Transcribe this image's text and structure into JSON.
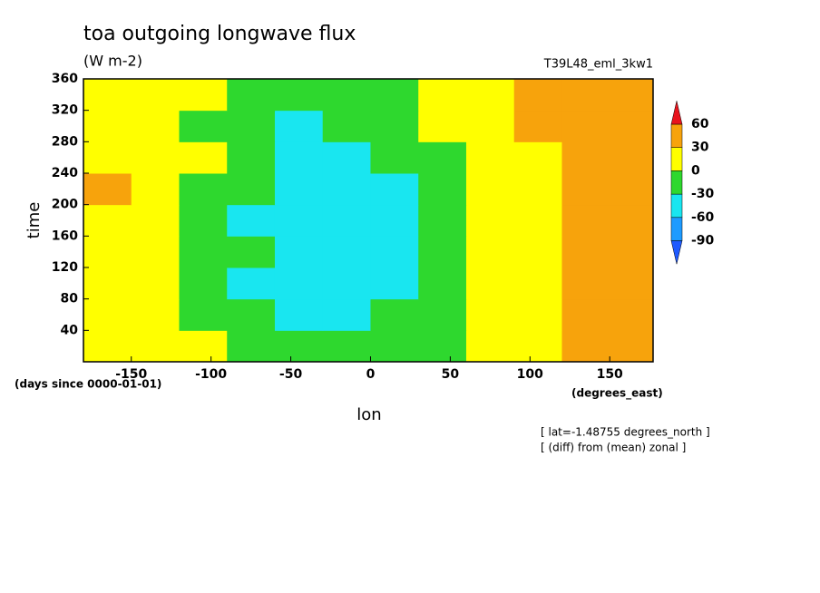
{
  "chart_data": {
    "type": "heatmap",
    "title": "toa outgoing longwave flux",
    "subtitle": "(W m-2)",
    "dataset": "T39L48_eml_3kw1",
    "x_label": "lon",
    "y_label": "time",
    "x_units": "(degrees_east)",
    "y_units": "(days since 0000-01-01)",
    "notes": [
      "[ lat=-1.48755 degrees_north ]",
      "[ (diff) from (mean) zonal ]"
    ],
    "xlim": [
      -180,
      177.1875
    ],
    "ylim": [
      0,
      360
    ],
    "xticks": [
      -150,
      -100,
      -50,
      0,
      50,
      100,
      150
    ],
    "yticks": [
      40,
      80,
      120,
      160,
      200,
      240,
      280,
      320,
      360
    ],
    "x": [
      -165,
      -135,
      -105,
      -75,
      -45,
      -15,
      15,
      45,
      75,
      105,
      135,
      165
    ],
    "y": [
      20,
      60,
      100,
      140,
      180,
      220,
      260,
      300,
      340
    ],
    "z": [
      [
        15,
        10,
        0,
        -20,
        -30,
        -25,
        -20,
        -10,
        10,
        20,
        35,
        35
      ],
      [
        20,
        15,
        -5,
        -25,
        -40,
        -35,
        -30,
        -5,
        15,
        25,
        35,
        30
      ],
      [
        25,
        15,
        -10,
        -35,
        -45,
        -40,
        -35,
        -10,
        10,
        25,
        30,
        35
      ],
      [
        25,
        20,
        -10,
        -30,
        -50,
        -45,
        -40,
        -5,
        15,
        25,
        35,
        30
      ],
      [
        20,
        15,
        -15,
        -35,
        -55,
        -45,
        -40,
        -10,
        10,
        20,
        35,
        35
      ],
      [
        30,
        20,
        -5,
        -30,
        -45,
        -50,
        -35,
        -5,
        15,
        25,
        35,
        30
      ],
      [
        20,
        15,
        0,
        -20,
        -35,
        -40,
        -30,
        -5,
        10,
        25,
        40,
        35
      ],
      [
        25,
        15,
        -5,
        -25,
        -35,
        -30,
        -25,
        0,
        15,
        30,
        40,
        35
      ],
      [
        20,
        10,
        0,
        -15,
        -25,
        -20,
        -15,
        5,
        20,
        30,
        45,
        40
      ]
    ],
    "colorbar": {
      "levels": [
        -90,
        -60,
        -30,
        0,
        30,
        60
      ],
      "colors": [
        "#1e5aff",
        "#1e9bff",
        "#19e6f0",
        "#2ed82e",
        "#ffff00",
        "#f7a30c",
        "#e8141e"
      ]
    }
  }
}
